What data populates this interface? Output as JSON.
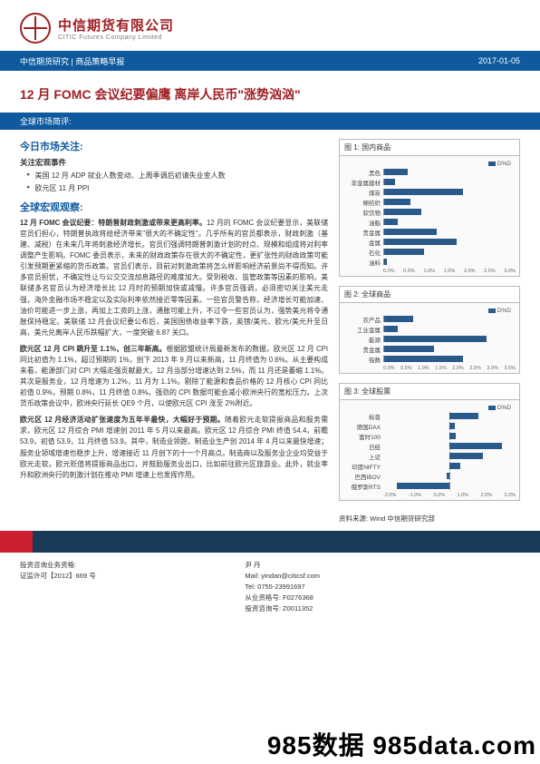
{
  "header": {
    "logo_cn": "中信期货有限公司",
    "logo_en": "CITIC Futures Company Limited"
  },
  "bluebar": {
    "left": "中信期货研究 | 商品策略早报",
    "right": "2017-01-05"
  },
  "title": "12 月 FOMC 会议纪要偏鹰  离岸人民币\"涨势汹汹\"",
  "subtitle": "全球市场简评:",
  "focus": {
    "title": "今日市场关注:",
    "sub": "关注宏观事件",
    "bullets": [
      "美国 12 月 ADP 就业人数变动、上周季调后初请失业金人数",
      "欧元区 11 月 PPI"
    ]
  },
  "macro": {
    "title": "全球宏观观察:",
    "p1": "12 月的 FOMC 会议纪要显示，美联储官员们担心，特朗普执政将给经济带来\"很大的不确定性\"。几乎所有的官员都表示，财政刺激（基建、减税）在未来几年将刺激经济增长。官员们强调特朗普刺激计划的时点、规模和组成将对利率调整产生影响。FOMC 委员表示，未来的财政政策存在很大的不确定性，更扩张性的财政政策可能引发预期更紧缩的货币政策。官员们表示，目前对刺激政策将怎么样影响经济前景尚不得而知。许多官员担忧，不确定性让与公交交流加息路径的难度加大。受到税收、监管政策等因素的影响，美联储多名官员认为经济增长比 12 月时的预期加快或减慢。许多官员强调，必须密切关注美元走强，海外金融市场不稳定以及实际利率依然接近零等因素。一些官员警告称，经济增长可能加速、油价可能进一步上涨，再加上工资的上涨，通胀可能上升，不过令一些官员认为，强势美元将令通胀保持稳定。美联储 12 月会议纪要公布后，美国国债收益率下跌，英镑/美元、欧元/美元升至日高，美元兑离岸人民币跌幅扩大，一度突破 6.87 关口。",
    "p1_lead": "12 月 FOMC 会议纪要：特朗普财政刺激或带来更高利率。",
    "p2": "根据欧盟统计局最新发布的数据，欧元区 12 月 CPI 同比初值为 1.1%，超过预期的 1%，创下 2013 年 9 月以来新高，11 月终值为 0.6%。从主要构成来看，能源部门对 CPI 大幅走强贡献最大，12 月当部分增速达到 2.5%，而 11 月还是萎缩 1.1%。其次是服务业，12 月增速为 1.2%，11 月为 1.1%。剔除了能源和食品价格的 12 月核心 CPI 同比初值 0.9%，预期 0.8%，11 月终值 0.8%。强劲的 CPI 数据可能会减小欧洲央行的宽松压力。上次货币政策会议中，欧洲央行延长 QE9 个月，以使欧元区 CPI 涨至 2%附近。",
    "p2_lead": "欧元区 12 月 CPI 跳升至 1.1%，创三年新高。",
    "p3": "随着欧元走软提振商品和服务需求，欧元区 12 月综合 PMI 增速创 2011 年 5 月以来最高。欧元区 12 月综合 PMI 终值 54.4，前瞻 53.9，初值 53.9，11 月终值 53.9。其中，制造业领跑，制造业生产创 2014 年 4 月以来最快增速；服务业领域增速也稳步上升，增速接近 11 月创下的十一个月高点。制造商以及服务业企业均受益于欧元走软。欧元贬值将提振商品出口，并鼓励服务业出口，比如前往欧元区旅游业。此外，就业率升和欧洲央行的刺激计划在推动 PMI 增速上也发挥作用。",
    "p3_lead": "欧元区 12 月经济活动扩张速度为五年半最快，大幅好于预期。"
  },
  "charts": {
    "c1": {
      "title": "图 1:    国内商品",
      "legend": "D%D",
      "items": [
        {
          "label": "黑色",
          "v": 18
        },
        {
          "label": "非金属建材",
          "v": 8
        },
        {
          "label": "煤炭",
          "v": 60
        },
        {
          "label": "棉纺织",
          "v": 20
        },
        {
          "label": "软饮物",
          "v": 28
        },
        {
          "label": "油脂",
          "v": 10
        },
        {
          "label": "贵金属",
          "v": 40
        },
        {
          "label": "金属",
          "v": 55
        },
        {
          "label": "石化",
          "v": 30
        },
        {
          "label": "油料",
          "v": 2
        }
      ],
      "axis": [
        "0.0%",
        "0.5%",
        "1.0%",
        "1.5%",
        "2.0%",
        "2.5%",
        "3.0%"
      ]
    },
    "c2": {
      "title": "图 2:    全球商品",
      "legend": "D%D",
      "items": [
        {
          "label": "农产品",
          "v": 22
        },
        {
          "label": "工业金属",
          "v": 10
        },
        {
          "label": "能源",
          "v": 78
        },
        {
          "label": "贵金属",
          "v": 38
        },
        {
          "label": "指数",
          "v": 60
        }
      ],
      "axis": [
        "0.0%",
        "0.5%",
        "1.0%",
        "1.5%",
        "2.0%",
        "2.5%",
        "3.0%",
        "3.5%"
      ]
    },
    "c3": {
      "title": "图 3:    全球股票",
      "legend": "D%D",
      "items": [
        {
          "label": "标普",
          "v": 22
        },
        {
          "label": "德国DAX",
          "v": 4
        },
        {
          "label": "富时100",
          "v": 5
        },
        {
          "label": "日经",
          "v": 40
        },
        {
          "label": "上证",
          "v": 25
        },
        {
          "label": "印度NIFTY",
          "v": 8
        },
        {
          "label": "巴西IBOV",
          "v": -2
        },
        {
          "label": "俄罗斯RTS",
          "v": -40
        }
      ],
      "axis": [
        "-2.0%",
        "-1.0%",
        "0.0%",
        "1.0%",
        "2.0%",
        "3.0%"
      ]
    },
    "source": "资料来源: Wind  中信期货研究部"
  },
  "footer": {
    "l1": "投资咨询业务资格:",
    "l2": "证监许可【2012】669 号",
    "r_name": "尹  丹",
    "r_mail": "Mail: yindan@citicsf.com",
    "r_tel": "Tel:  0755-23991697",
    "r_no1": "从业资格号: F0276368",
    "r_no2": "投资咨询号: Z0011352"
  },
  "watermark": "985数据 985data.com"
}
